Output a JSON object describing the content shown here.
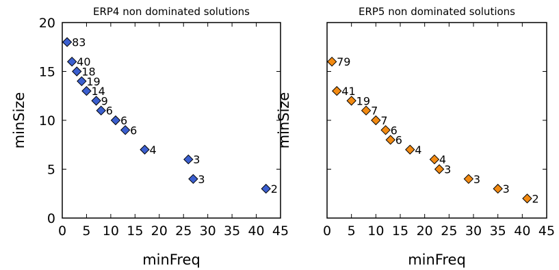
{
  "chart_data": [
    {
      "type": "scatter",
      "title": "ERP4 non dominated solutions",
      "xlabel": "minFreq",
      "ylabel": "minSize",
      "xlim": [
        0,
        45
      ],
      "ylim": [
        0,
        20
      ],
      "xticks": [
        "0",
        "5",
        "10",
        "15",
        "20",
        "25",
        "30",
        "35",
        "40",
        "45"
      ],
      "yticks": [
        "0",
        "5",
        "10",
        "15",
        "20"
      ],
      "marker": "diamond",
      "color": "#3b5fcf",
      "points": [
        {
          "x": 1,
          "y": 18,
          "label": "83"
        },
        {
          "x": 2,
          "y": 16,
          "label": "40"
        },
        {
          "x": 3,
          "y": 15,
          "label": "18"
        },
        {
          "x": 4,
          "y": 14,
          "label": "19"
        },
        {
          "x": 5,
          "y": 13,
          "label": "14"
        },
        {
          "x": 7,
          "y": 12,
          "label": "9"
        },
        {
          "x": 8,
          "y": 11,
          "label": "6"
        },
        {
          "x": 11,
          "y": 10,
          "label": "6"
        },
        {
          "x": 13,
          "y": 9,
          "label": "6"
        },
        {
          "x": 17,
          "y": 7,
          "label": "4"
        },
        {
          "x": 26,
          "y": 6,
          "label": "3"
        },
        {
          "x": 27,
          "y": 4,
          "label": "3"
        },
        {
          "x": 42,
          "y": 3,
          "label": "2"
        }
      ]
    },
    {
      "type": "scatter",
      "title": "ERP5 non dominated solutions",
      "xlabel": "minFreq",
      "ylabel": "minSize",
      "xlim": [
        0,
        45
      ],
      "ylim": [
        0,
        20
      ],
      "xticks": [
        "0",
        "5",
        "10",
        "15",
        "20",
        "25",
        "30",
        "35",
        "40",
        "45"
      ],
      "yticks": [],
      "marker": "diamond",
      "color": "#f28a12",
      "points": [
        {
          "x": 1,
          "y": 16,
          "label": "79"
        },
        {
          "x": 2,
          "y": 13,
          "label": "41"
        },
        {
          "x": 5,
          "y": 12,
          "label": "19"
        },
        {
          "x": 8,
          "y": 11,
          "label": "7"
        },
        {
          "x": 10,
          "y": 10,
          "label": "7"
        },
        {
          "x": 12,
          "y": 9,
          "label": "6"
        },
        {
          "x": 13,
          "y": 8,
          "label": "6"
        },
        {
          "x": 17,
          "y": 7,
          "label": "4"
        },
        {
          "x": 22,
          "y": 6,
          "label": "4"
        },
        {
          "x": 23,
          "y": 5,
          "label": "3"
        },
        {
          "x": 29,
          "y": 4,
          "label": "3"
        },
        {
          "x": 35,
          "y": 3,
          "label": "3"
        },
        {
          "x": 41,
          "y": 2,
          "label": "2"
        }
      ]
    }
  ]
}
